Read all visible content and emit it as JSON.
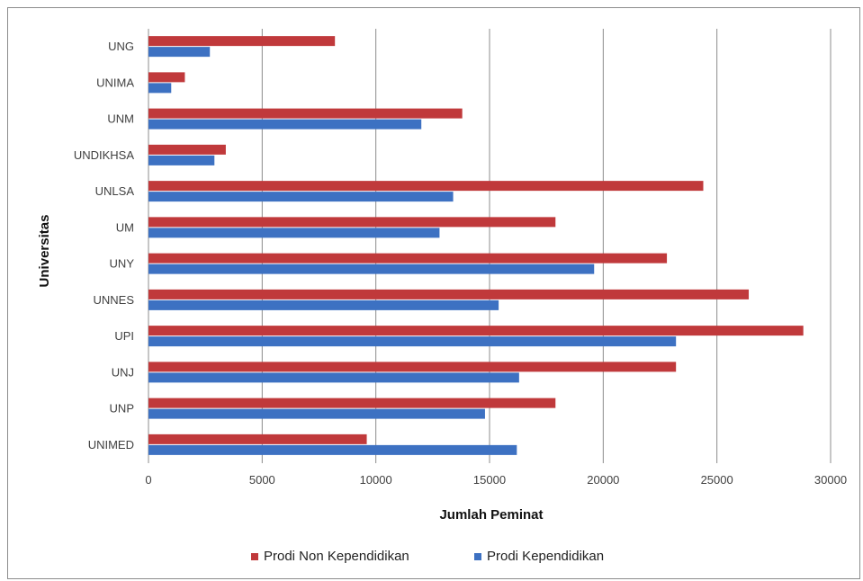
{
  "chart_data": {
    "type": "bar",
    "orientation": "horizontal",
    "title": "",
    "xlabel": "Jumlah Peminat",
    "ylabel": "Universitas",
    "xlim": [
      0,
      30000
    ],
    "xticks": [
      0,
      5000,
      10000,
      15000,
      20000,
      25000,
      30000
    ],
    "grid": "vertical",
    "legend_position": "bottom",
    "categories": [
      "UNG",
      "UNIMA",
      "UNM",
      "UNDIKHSA",
      "UNLSA",
      "UM",
      "UNY",
      "UNNES",
      "UPI",
      "UNJ",
      "UNP",
      "UNIMED"
    ],
    "series": [
      {
        "name": "Prodi Non Kependidikan",
        "color": "#c0393b",
        "values": [
          8200,
          1600,
          13800,
          3400,
          24400,
          17900,
          22800,
          26400,
          28800,
          23200,
          17900,
          9600
        ]
      },
      {
        "name": "Prodi Kependidikan",
        "color": "#3d71c2",
        "values": [
          2700,
          1000,
          12000,
          2900,
          13400,
          12800,
          19600,
          15400,
          23200,
          16300,
          14800,
          16200
        ]
      }
    ]
  }
}
